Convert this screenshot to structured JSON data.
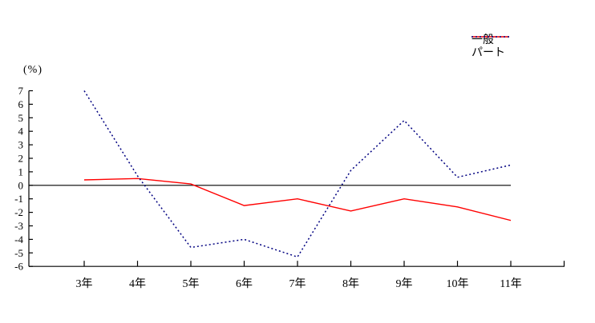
{
  "chart_data": {
    "type": "line",
    "title": "",
    "xlabel": "",
    "ylabel": "(%)",
    "categories": [
      "3年",
      "4年",
      "5年",
      "6年",
      "7年",
      "8年",
      "9年",
      "10年",
      "11年"
    ],
    "series": [
      {
        "name": "一般",
        "color": "#ff0000",
        "line_style": "solid",
        "values": [
          0.4,
          0.5,
          0.1,
          -1.5,
          -1.0,
          -1.9,
          -1.0,
          -1.6,
          -2.6
        ]
      },
      {
        "name": "パート",
        "color": "#000080",
        "line_style": "dotted",
        "values": [
          7.0,
          0.7,
          -4.6,
          -4.0,
          -5.3,
          1.1,
          4.8,
          0.6,
          1.5
        ]
      }
    ],
    "ylim": [
      -6,
      7
    ],
    "yticks": [
      7,
      6,
      5,
      4,
      3,
      2,
      1,
      0,
      -1,
      -2,
      -3,
      -4,
      -5,
      -6
    ],
    "zero_line": true,
    "grid": false,
    "legend_position": "top-right",
    "axis_color": "#000000",
    "background_color": "#ffffff"
  }
}
